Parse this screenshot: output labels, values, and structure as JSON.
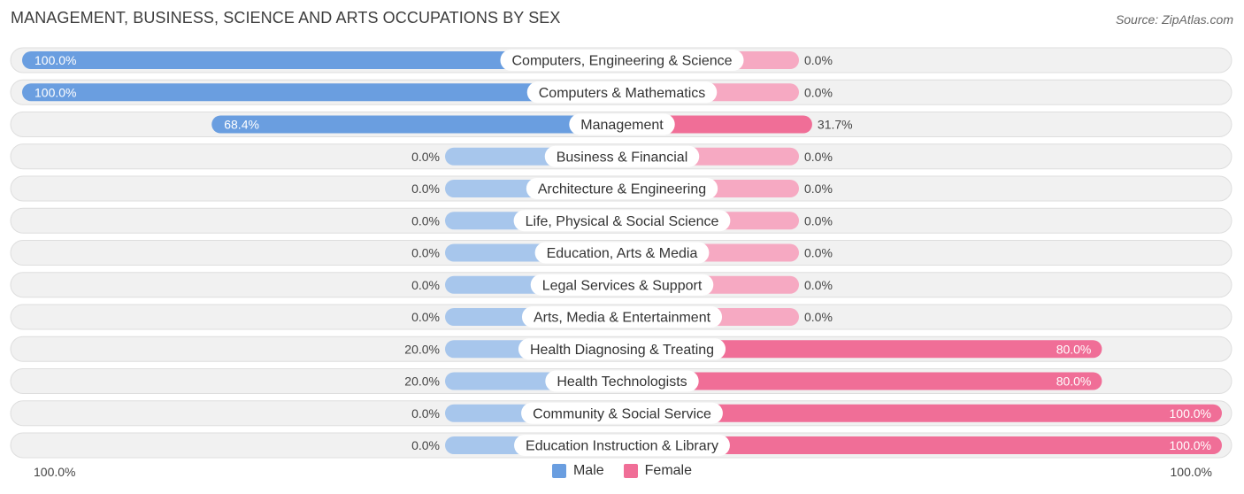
{
  "title": "MANAGEMENT, BUSINESS, SCIENCE AND ARTS OCCUPATIONS BY SEX",
  "source": "Source: ZipAtlas.com",
  "axis": {
    "left_label": "100.0%",
    "right_label": "100.0%"
  },
  "colors": {
    "male_strong": "#6a9ee0",
    "male_light": "#a7c6ec",
    "female_strong": "#f06e97",
    "female_light": "#f6a9c2",
    "track": "#f1f1f1",
    "track_border": "#dedede"
  },
  "legend": {
    "male": "Male",
    "female": "Female"
  },
  "chart_data": {
    "type": "bar",
    "orientation": "horizontal-diverging",
    "title": "MANAGEMENT, BUSINESS, SCIENCE AND ARTS OCCUPATIONS BY SEX",
    "xlim": [
      -100,
      100
    ],
    "series": [
      {
        "name": "Male",
        "values": [
          100.0,
          100.0,
          68.4,
          0.0,
          0.0,
          0.0,
          0.0,
          0.0,
          0.0,
          20.0,
          20.0,
          0.0,
          0.0
        ]
      },
      {
        "name": "Female",
        "values": [
          0.0,
          0.0,
          31.7,
          0.0,
          0.0,
          0.0,
          0.0,
          0.0,
          0.0,
          80.0,
          80.0,
          100.0,
          100.0
        ]
      }
    ],
    "categories": [
      "Computers, Engineering & Science",
      "Computers & Mathematics",
      "Management",
      "Business & Financial",
      "Architecture & Engineering",
      "Life, Physical & Social Science",
      "Education, Arts & Media",
      "Legal Services & Support",
      "Arts, Media & Entertainment",
      "Health Diagnosing & Treating",
      "Health Technologists",
      "Community & Social Service",
      "Education Instruction & Library"
    ],
    "male_labels": [
      "100.0%",
      "100.0%",
      "68.4%",
      "0.0%",
      "0.0%",
      "0.0%",
      "0.0%",
      "0.0%",
      "0.0%",
      "20.0%",
      "20.0%",
      "0.0%",
      "0.0%"
    ],
    "female_labels": [
      "0.0%",
      "0.0%",
      "31.7%",
      "0.0%",
      "0.0%",
      "0.0%",
      "0.0%",
      "0.0%",
      "0.0%",
      "80.0%",
      "80.0%",
      "100.0%",
      "100.0%"
    ]
  }
}
